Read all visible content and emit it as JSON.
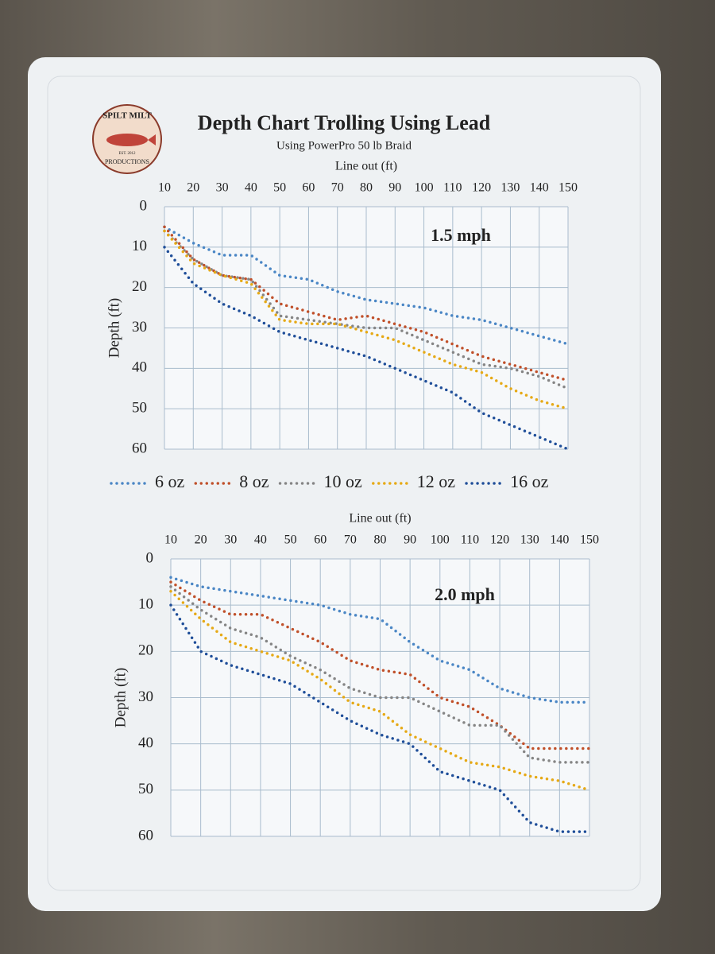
{
  "title": "Depth Chart Trolling Using Lead",
  "subtitle": "Using PowerPro 50 lb Braid",
  "logo": {
    "top": "SPILT MILT",
    "bottom": "PRODUCTIONS",
    "est": "EST. 2012"
  },
  "chart_data": [
    {
      "type": "line",
      "annotation": "1.5 mph",
      "x_label": "Line out (ft)",
      "y_label": "Depth (ft)",
      "x": [
        10,
        20,
        30,
        40,
        50,
        60,
        70,
        80,
        90,
        100,
        110,
        120,
        130,
        140,
        150
      ],
      "xlim": [
        10,
        150
      ],
      "xticks": [
        10,
        20,
        30,
        40,
        50,
        60,
        70,
        80,
        90,
        100,
        110,
        120,
        130,
        140,
        150
      ],
      "ylim": [
        0,
        60
      ],
      "yticks": [
        0,
        10,
        20,
        30,
        40,
        50,
        60
      ],
      "y_inverted": true,
      "x_axis_position": "top",
      "grid": true,
      "line_style": "dotted",
      "legend": true,
      "series": [
        {
          "name": "6 oz",
          "color": "#4a86c5",
          "values": [
            5,
            9,
            12,
            12,
            17,
            18,
            21,
            23,
            24,
            25,
            27,
            28,
            30,
            32,
            34
          ]
        },
        {
          "name": "8 oz",
          "color": "#c0502a",
          "values": [
            5,
            13,
            17,
            18,
            24,
            26,
            28,
            27,
            29,
            31,
            34,
            37,
            39,
            41,
            43
          ]
        },
        {
          "name": "10 oz",
          "color": "#858585",
          "values": [
            6,
            13,
            17,
            18,
            27,
            28,
            29,
            30,
            30,
            33,
            36,
            39,
            40,
            42,
            45
          ]
        },
        {
          "name": "12 oz",
          "color": "#e6a915",
          "values": [
            6,
            14,
            17,
            19,
            28,
            29,
            29,
            31,
            33,
            36,
            39,
            41,
            45,
            48,
            50
          ]
        },
        {
          "name": "16 oz",
          "color": "#1f4e99",
          "values": [
            10,
            19,
            24,
            27,
            31,
            33,
            35,
            37,
            40,
            43,
            46,
            51,
            54,
            57,
            60
          ]
        }
      ]
    },
    {
      "type": "line",
      "annotation": "2.0 mph",
      "x_label": "Line out (ft)",
      "y_label": "Depth (ft)",
      "x": [
        10,
        20,
        30,
        40,
        50,
        60,
        70,
        80,
        90,
        100,
        110,
        120,
        130,
        140,
        150
      ],
      "xlim": [
        10,
        150
      ],
      "xticks": [
        10,
        20,
        30,
        40,
        50,
        60,
        70,
        80,
        90,
        100,
        110,
        120,
        130,
        140,
        150
      ],
      "ylim": [
        0,
        60
      ],
      "yticks": [
        0,
        10,
        20,
        30,
        40,
        50,
        60
      ],
      "y_inverted": true,
      "x_axis_position": "top",
      "grid": true,
      "line_style": "dotted",
      "legend": false,
      "series": [
        {
          "name": "6 oz",
          "color": "#4a86c5",
          "values": [
            4,
            6,
            7,
            8,
            9,
            10,
            12,
            13,
            18,
            22,
            24,
            28,
            30,
            31,
            31
          ]
        },
        {
          "name": "8 oz",
          "color": "#c0502a",
          "values": [
            5,
            9,
            12,
            12,
            15,
            18,
            22,
            24,
            25,
            30,
            32,
            36,
            41,
            41,
            41
          ]
        },
        {
          "name": "10 oz",
          "color": "#858585",
          "values": [
            6,
            11,
            15,
            17,
            21,
            24,
            28,
            30,
            30,
            33,
            36,
            36,
            43,
            44,
            44
          ]
        },
        {
          "name": "12 oz",
          "color": "#e6a915",
          "values": [
            7,
            13,
            18,
            20,
            22,
            26,
            31,
            33,
            38,
            41,
            44,
            45,
            47,
            48,
            50
          ]
        },
        {
          "name": "16 oz",
          "color": "#1f4e99",
          "values": [
            10,
            20,
            23,
            25,
            27,
            31,
            35,
            38,
            40,
            46,
            48,
            50,
            57,
            59,
            59
          ]
        }
      ]
    }
  ]
}
